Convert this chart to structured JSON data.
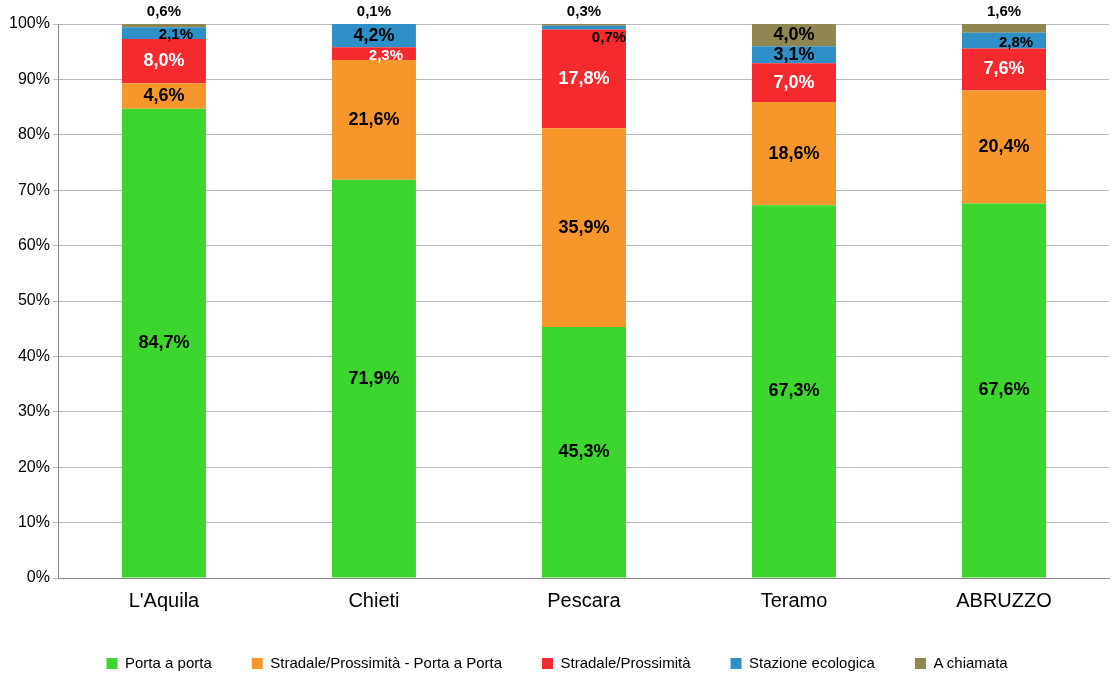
{
  "chart_data": {
    "type": "bar",
    "stacked": true,
    "categories": [
      "L'Aquila",
      "Chieti",
      "Pescara",
      "Teramo",
      "ABRUZZO"
    ],
    "series": [
      {
        "name": "Porta a porta",
        "color": "#3dd62f",
        "values": [
          84.7,
          71.9,
          45.3,
          67.3,
          67.6
        ],
        "value_labels": [
          "84,7%",
          "71,9%",
          "45,3%",
          "67,3%",
          "67,6%"
        ]
      },
      {
        "name": "Stradale/Prossimità - Porta a Porta",
        "color": "#f7962b",
        "values": [
          4.6,
          21.6,
          35.9,
          18.6,
          20.4
        ],
        "value_labels": [
          "4,6%",
          "21,6%",
          "35,9%",
          "18,6%",
          "20,4%"
        ]
      },
      {
        "name": "Stradale/Prossimità",
        "color": "#f42a2f",
        "values": [
          8.0,
          2.3,
          17.8,
          7.0,
          7.6
        ],
        "value_labels": [
          "8,0%",
          "2,3%",
          "17,8%",
          "7,0%",
          "7,6%"
        ]
      },
      {
        "name": "Stazione ecologica",
        "color": "#2f8fc7",
        "values": [
          2.1,
          4.2,
          0.7,
          3.1,
          2.8
        ],
        "value_labels": [
          "2,1%",
          "4,2%",
          "0,7%",
          "3,1%",
          "2,8%"
        ]
      },
      {
        "name": "A chiamata",
        "color": "#8f8650",
        "values": [
          0.6,
          0.1,
          0.3,
          4.0,
          1.6
        ],
        "value_labels": [
          "0,6%",
          "0,1%",
          "0,3%",
          "4,0%",
          "1,6%"
        ]
      }
    ],
    "ylim": [
      0,
      100
    ],
    "yticks": [
      {
        "value": 0,
        "label": "0%"
      },
      {
        "value": 10,
        "label": "10%"
      },
      {
        "value": 20,
        "label": "20%"
      },
      {
        "value": 30,
        "label": "30%"
      },
      {
        "value": 40,
        "label": "40%"
      },
      {
        "value": 50,
        "label": "50%"
      },
      {
        "value": 60,
        "label": "60%"
      },
      {
        "value": 70,
        "label": "70%"
      },
      {
        "value": 80,
        "label": "80%"
      },
      {
        "value": 90,
        "label": "90%"
      },
      {
        "value": 100,
        "label": "100%"
      }
    ],
    "grid": "y",
    "legend": "bottom"
  }
}
